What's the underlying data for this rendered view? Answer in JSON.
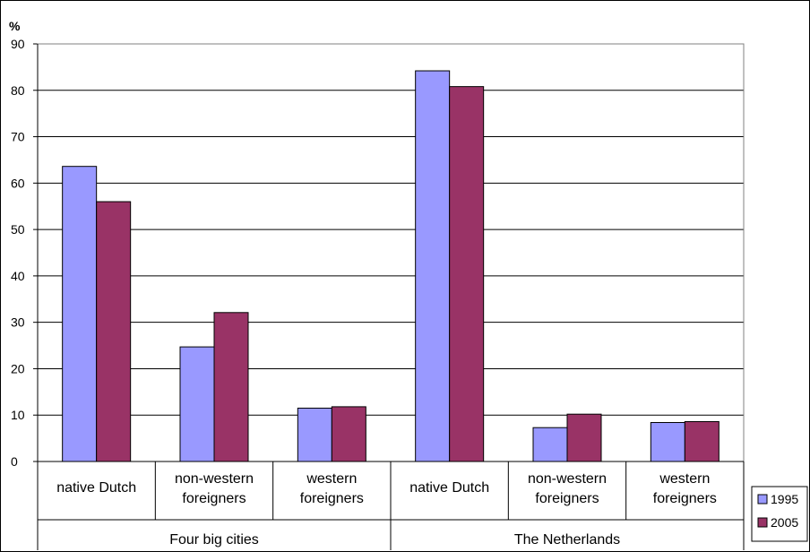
{
  "chart_data": {
    "type": "bar",
    "unit_label": "%",
    "ylim": [
      0,
      90
    ],
    "yticks": [
      0,
      10,
      20,
      30,
      40,
      50,
      60,
      70,
      80,
      90
    ],
    "grid": true,
    "legend_position": "right",
    "groups": [
      {
        "label": "Four big cities",
        "categories": [
          "native Dutch",
          "non-western foreigners",
          "western foreigners"
        ]
      },
      {
        "label": "The Netherlands",
        "categories": [
          "native Dutch",
          "non-western foreigners",
          "western foreigners"
        ]
      }
    ],
    "category_labels": [
      [
        "native Dutch"
      ],
      [
        "non-western",
        "foreigners"
      ],
      [
        "western",
        "foreigners"
      ],
      [
        "native Dutch"
      ],
      [
        "non-western",
        "foreigners"
      ],
      [
        "western",
        "foreigners"
      ]
    ],
    "series": [
      {
        "name": "1995",
        "color": "#9999ff",
        "values": [
          63.6,
          24.7,
          11.5,
          84.2,
          7.3,
          8.4
        ]
      },
      {
        "name": "2005",
        "color": "#993366",
        "values": [
          56.0,
          32.1,
          11.8,
          80.8,
          10.2,
          8.6
        ]
      }
    ]
  }
}
